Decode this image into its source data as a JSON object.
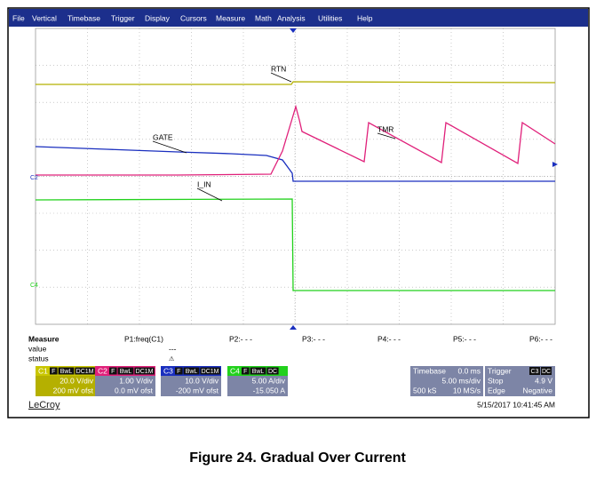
{
  "menu": [
    "File",
    "Vertical",
    "Timebase",
    "Trigger",
    "Display",
    "Cursors",
    "Measure",
    "Math",
    "Analysis",
    "Utilities",
    "Help"
  ],
  "trace_labels": {
    "rtn": "RTN",
    "gate": "GATE",
    "tmr": "TMR",
    "i_in": "I_IN",
    "c2": "C2",
    "c4": "C4"
  },
  "measure": {
    "title": "Measure",
    "params": [
      "P1:freq(C1)",
      "P2:- - -",
      "P3:- - -",
      "P4:- - -",
      "P5:- - -",
      "P6:- - -"
    ],
    "value_label": "value",
    "value": "---",
    "status_label": "status",
    "status": "⚠"
  },
  "channels": [
    {
      "name": "C1",
      "tags": [
        "F",
        "BwL",
        "DC1M"
      ],
      "line1": "20.0 V/div",
      "line2": "200 mV ofst"
    },
    {
      "name": "C2",
      "tags": [
        "F",
        "BwL",
        "DC1M"
      ],
      "line1": "1.00 V/div",
      "line2": "0.0 mV ofst"
    },
    {
      "name": "C3",
      "tags": [
        "F",
        "BwL",
        "DC1M"
      ],
      "line1": "10.0 V/div",
      "line2": "-200 mV ofst"
    },
    {
      "name": "C4",
      "tags": [
        "F",
        "BwL",
        "DC"
      ],
      "line1": "5.00 A/div",
      "line2": "-15.050 A"
    }
  ],
  "timebase": {
    "label": "Timebase",
    "delay": "0.0 ms",
    "scale": "5.00 ms/div",
    "samples": "500 kS",
    "rate": "10 MS/s"
  },
  "trigger": {
    "label": "Trigger",
    "source": "C3",
    "coupling": "DC",
    "mode": "Stop",
    "level": "4.9 V",
    "type": "Edge",
    "slope": "Negative"
  },
  "brand": "LeCroy",
  "date": "5/15/2017 10:41:45 AM",
  "caption": "Figure 24. Gradual Over Current"
}
